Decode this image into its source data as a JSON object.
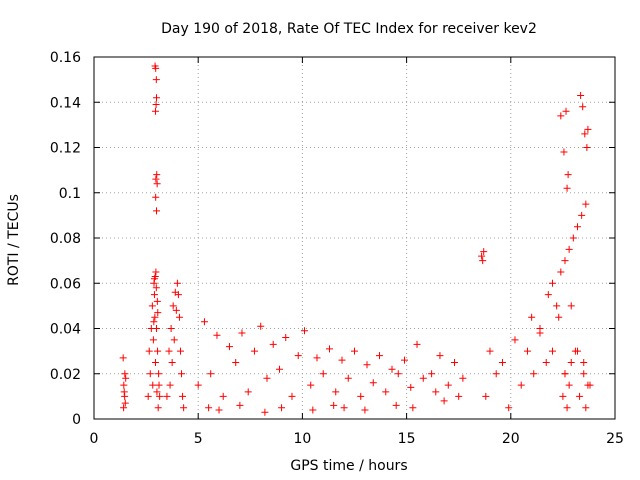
{
  "chart_data": {
    "type": "scatter",
    "title": "Day 190 of 2018, Rate Of TEC Index for receiver kev2",
    "xlabel": "GPS time / hours",
    "ylabel": "ROTI / TECUs",
    "xlim": [
      0,
      25
    ],
    "ylim": [
      0,
      0.16
    ],
    "xticks": [
      0,
      5,
      10,
      15,
      20,
      25
    ],
    "yticks": [
      0,
      0.02,
      0.04,
      0.06,
      0.08,
      0.1,
      0.12,
      0.14,
      0.16
    ],
    "xtick_labels": [
      "0",
      "5",
      "10",
      "15",
      "20",
      "25"
    ],
    "ytick_labels": [
      "0",
      "0.02",
      "0.04",
      "0.06",
      "0.08",
      "0.1",
      "0.12",
      "0.14",
      "0.16"
    ],
    "grid": true,
    "marker": "+",
    "series": [
      {
        "name": "ROTI",
        "color": "#ff0000",
        "x": [
          1.4,
          1.42,
          1.45,
          1.48,
          1.5,
          1.52,
          1.43,
          1.47,
          2.6,
          2.65,
          2.7,
          2.75,
          2.8,
          2.82,
          2.85,
          2.88,
          2.9,
          2.92,
          2.95,
          2.97,
          3.0,
          3.02,
          3.05,
          3.08,
          3.1,
          3.12,
          3.15,
          2.93,
          2.96,
          2.99,
          3.0,
          2.98,
          2.95,
          3.01,
          2.97,
          3.03,
          2.96,
          3.0,
          2.94,
          2.99,
          3.04,
          2.9,
          3.06,
          2.87,
          3.5,
          3.6,
          3.7,
          3.8,
          3.9,
          4.0,
          4.1,
          4.2,
          4.3,
          3.65,
          3.75,
          3.85,
          3.95,
          4.05,
          4.15,
          4.25,
          5.0,
          5.3,
          5.6,
          5.9,
          6.2,
          6.5,
          6.8,
          7.1,
          7.4,
          7.7,
          8.0,
          8.3,
          8.6,
          8.9,
          9.2,
          9.5,
          9.8,
          10.1,
          10.4,
          10.7,
          11.0,
          11.3,
          11.6,
          11.9,
          12.2,
          12.5,
          12.8,
          13.1,
          13.4,
          13.7,
          14.0,
          14.3,
          14.6,
          14.9,
          15.2,
          15.5,
          15.8,
          5.5,
          6.0,
          7.0,
          8.2,
          9.0,
          10.5,
          11.5,
          12.0,
          13.0,
          14.5,
          15.3,
          16.2,
          16.4,
          16.6,
          16.8,
          17.0,
          17.3,
          17.5,
          17.7,
          18.6,
          18.65,
          18.7,
          18.8,
          19.0,
          19.3,
          19.6,
          19.9,
          20.2,
          20.5,
          20.8,
          21.1,
          21.4,
          21.7,
          22.0,
          22.3,
          22.6,
          22.9,
          23.2,
          23.5,
          23.8,
          21.0,
          21.4,
          21.8,
          22.0,
          22.2,
          22.4,
          22.6,
          22.8,
          23.0,
          23.2,
          23.4,
          23.6,
          22.5,
          22.6,
          22.7,
          22.8,
          22.9,
          23.1,
          23.3,
          23.5,
          23.6,
          23.7,
          22.4,
          22.55,
          22.7,
          23.35,
          23.45,
          23.55,
          23.65,
          23.7,
          22.65,
          22.75
        ],
        "y": [
          0.027,
          0.005,
          0.012,
          0.02,
          0.007,
          0.018,
          0.015,
          0.01,
          0.01,
          0.03,
          0.02,
          0.04,
          0.05,
          0.015,
          0.035,
          0.06,
          0.055,
          0.045,
          0.025,
          0.065,
          0.04,
          0.012,
          0.03,
          0.005,
          0.02,
          0.015,
          0.01,
          0.156,
          0.155,
          0.15,
          0.142,
          0.139,
          0.136,
          0.108,
          0.106,
          0.104,
          0.098,
          0.092,
          0.063,
          0.058,
          0.052,
          0.062,
          0.047,
          0.043,
          0.01,
          0.03,
          0.04,
          0.05,
          0.056,
          0.06,
          0.045,
          0.02,
          0.005,
          0.015,
          0.025,
          0.035,
          0.048,
          0.055,
          0.03,
          0.01,
          0.015,
          0.043,
          0.02,
          0.037,
          0.01,
          0.032,
          0.025,
          0.038,
          0.012,
          0.03,
          0.041,
          0.018,
          0.033,
          0.022,
          0.036,
          0.01,
          0.028,
          0.039,
          0.015,
          0.027,
          0.02,
          0.031,
          0.012,
          0.026,
          0.018,
          0.03,
          0.01,
          0.024,
          0.016,
          0.028,
          0.012,
          0.022,
          0.02,
          0.026,
          0.014,
          0.033,
          0.018,
          0.005,
          0.004,
          0.006,
          0.003,
          0.005,
          0.004,
          0.006,
          0.005,
          0.004,
          0.006,
          0.005,
          0.02,
          0.012,
          0.028,
          0.008,
          0.015,
          0.025,
          0.01,
          0.018,
          0.072,
          0.07,
          0.074,
          0.01,
          0.03,
          0.02,
          0.025,
          0.005,
          0.035,
          0.015,
          0.03,
          0.02,
          0.04,
          0.025,
          0.03,
          0.045,
          0.02,
          0.05,
          0.03,
          0.025,
          0.015,
          0.045,
          0.038,
          0.055,
          0.06,
          0.05,
          0.065,
          0.07,
          0.075,
          0.08,
          0.085,
          0.09,
          0.095,
          0.01,
          0.02,
          0.005,
          0.015,
          0.025,
          0.03,
          0.01,
          0.02,
          0.005,
          0.015,
          0.134,
          0.118,
          0.102,
          0.143,
          0.138,
          0.126,
          0.12,
          0.128,
          0.136,
          0.108
        ]
      }
    ]
  }
}
